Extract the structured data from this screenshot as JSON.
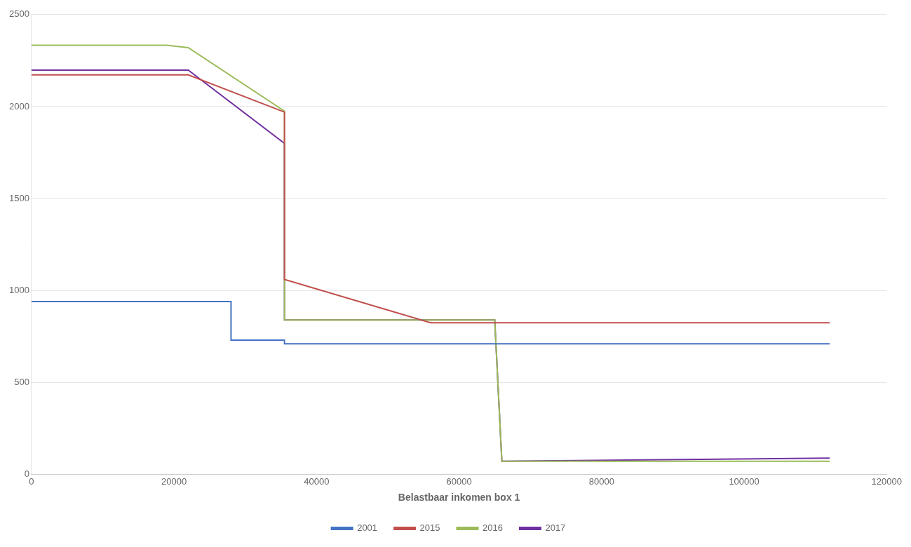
{
  "chart_data": {
    "type": "line",
    "xlabel": "Belastbaar inkomen box 1",
    "xlim": [
      0,
      120000
    ],
    "ylim": [
      0,
      2500
    ],
    "xticks": [
      0,
      20000,
      40000,
      60000,
      80000,
      100000,
      120000
    ],
    "yticks": [
      0,
      500,
      1000,
      1500,
      2000,
      2500
    ],
    "grid": "y",
    "legend": "bottom",
    "series": [
      {
        "name": "2001",
        "color": "#4472C4",
        "x": [
          0,
          28000,
          28000,
          35500,
          35500,
          112000
        ],
        "values": [
          940,
          940,
          730,
          730,
          710,
          710
        ]
      },
      {
        "name": "2015",
        "color": "#C0504D",
        "x": [
          0,
          22000,
          35500,
          35500,
          56000,
          112000
        ],
        "values": [
          2172,
          2172,
          1970,
          1060,
          825,
          825
        ]
      },
      {
        "name": "2016",
        "color": "#9BBB59",
        "x": [
          0,
          19000,
          22000,
          35500,
          35500,
          65000,
          66000,
          112000
        ],
        "values": [
          2333,
          2333,
          2320,
          1975,
          840,
          840,
          72,
          72
        ]
      },
      {
        "name": "2017",
        "color": "#7030A0",
        "x": [
          0,
          22000,
          35500,
          35500,
          65000,
          66000,
          112000
        ],
        "values": [
          2198,
          2198,
          1800,
          840,
          840,
          72,
          89
        ]
      }
    ]
  }
}
